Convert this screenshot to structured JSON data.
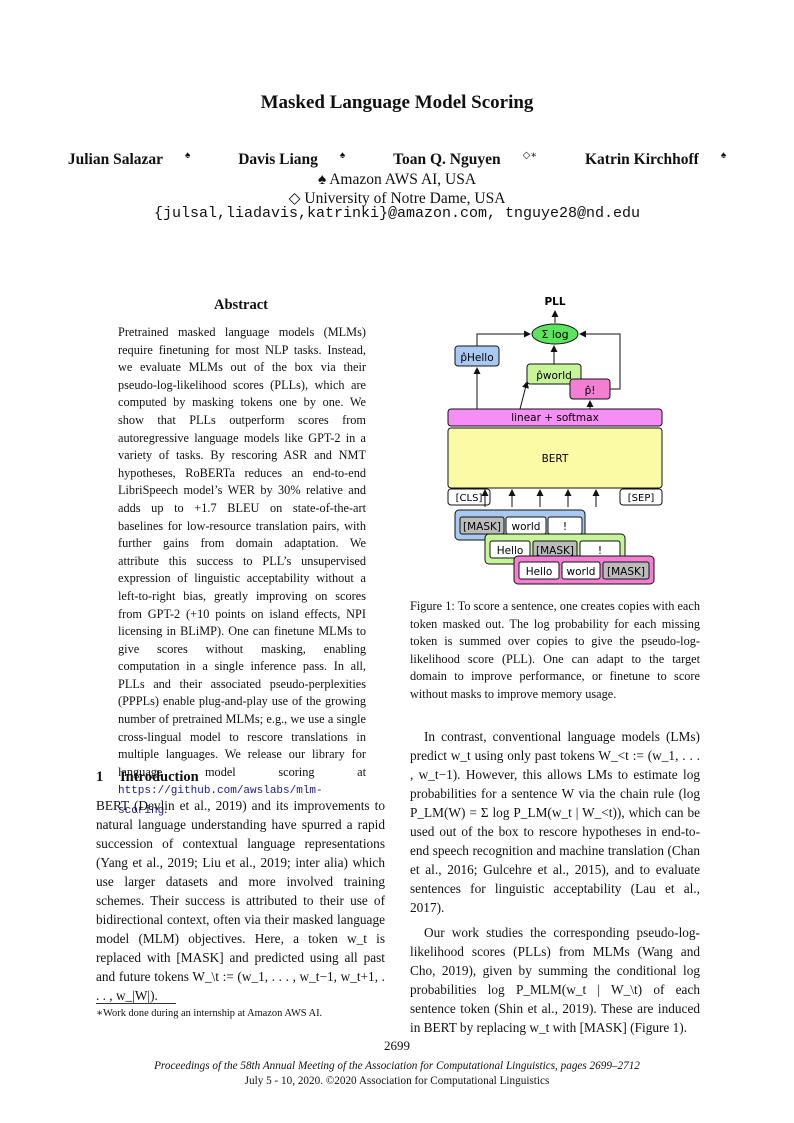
{
  "title": "Masked Language Model Scoring",
  "authors": [
    {
      "name": "Julian Salazar",
      "mark": "♠"
    },
    {
      "name": "Davis Liang",
      "mark": "♠"
    },
    {
      "name": "Toan Q. Nguyen",
      "mark": "◇∗"
    },
    {
      "name": "Katrin Kirchhoff",
      "mark": "♠"
    }
  ],
  "affiliations": [
    "♠ Amazon AWS AI, USA",
    "◇ University of Notre Dame, USA"
  ],
  "emails": "{julsal,liadavis,katrinki}@amazon.com, tnguye28@nd.edu",
  "abstract": {
    "heading": "Abstract",
    "text": "Pretrained masked language models (MLMs) require finetuning for most NLP tasks. Instead, we evaluate MLMs out of the box via their pseudo-log-likelihood scores (PLLs), which are computed by masking tokens one by one. We show that PLLs outperform scores from autoregressive language models like GPT-2 in a variety of tasks. By rescoring ASR and NMT hypotheses, RoBERTa reduces an end-to-end LibriSpeech model’s WER by 30% relative and adds up to +1.7 BLEU on state-of-the-art baselines for low-resource translation pairs, with further gains from domain adaptation. We attribute this success to PLL’s unsupervised expression of linguistic acceptability without a left-to-right bias, greatly improving on scores from GPT-2 (+10 points on island effects, NPI licensing in BLiMP). One can finetune MLMs to give scores without masking, enabling computation in a single inference pass. In all, PLLs and their associated pseudo-perplexities (PPPLs) enable plug-and-play use of the growing number of pretrained MLMs; e.g., we use a single cross-lingual model to rescore translations in multiple languages. We release our library for language model scoring at",
    "url": "https://github.com/awslabs/mlm-scoring"
  },
  "section": {
    "number": "1",
    "title": "Introduction"
  },
  "intro_text": "BERT (Devlin et al., 2019) and its improvements to natural language understanding have spurred a rapid succession of contextual language representations (Yang et al., 2019; Liu et al., 2019; inter alia) which use larger datasets and more involved training schemes. Their success is attributed to their use of bidirectional context, often via their masked language model (MLM) objectives. Here, a token w_t is replaced with [MASK] and predicted using all past and future tokens W_\\t := (w_1, . . . , w_t−1, w_t+1, . . . , w_|W|).",
  "footnote": "∗Work done during an internship at Amazon AWS AI.",
  "figure": {
    "pll": "PLL",
    "sum": "Σ log",
    "p_hello": "p̂Hello",
    "p_world": "p̂world",
    "p_excl": "p̂!",
    "linear": "linear + softmax",
    "bert": "BERT",
    "cls": "[CLS]",
    "sep": "[SEP]",
    "row1": [
      "[MASK]",
      "world",
      "!"
    ],
    "row2": [
      "Hello",
      "[MASK]",
      "!"
    ],
    "row3": [
      "Hello",
      "world",
      "[MASK]"
    ]
  },
  "caption": "Figure 1: To score a sentence, one creates copies with each token masked out. The log probability for each missing token is summed over copies to give the pseudo-log-likelihood score (PLL). One can adapt to the target domain to improve performance, or finetune to score without masks to improve memory usage.",
  "right_p1": "In contrast, conventional language models (LMs) predict w_t using only past tokens W_<t := (w_1, . . . , w_t−1). However, this allows LMs to estimate log probabilities for a sentence W via the chain rule (log P_LM(W) = Σ log P_LM(w_t | W_<t)), which can be used out of the box to rescore hypotheses in end-to-end speech recognition and machine translation (Chan et al., 2016; Gulcehre et al., 2015), and to evaluate sentences for linguistic acceptability (Lau et al., 2017).",
  "right_p2": "Our work studies the corresponding pseudo-log-likelihood scores (PLLs) from MLMs (Wang and Cho, 2019), given by summing the conditional log probabilities log P_MLM(w_t | W_\\t) of each sentence token (Shin et al., 2019). These are induced in BERT by replacing w_t with [MASK] (Figure 1).",
  "page_number": "2699",
  "proceedings": "Proceedings of the 58th Annual Meeting of the Association for Computational Linguistics, pages 2699–2712",
  "dates": "July 5 - 10, 2020. ©2020 Association for Computational Linguistics"
}
